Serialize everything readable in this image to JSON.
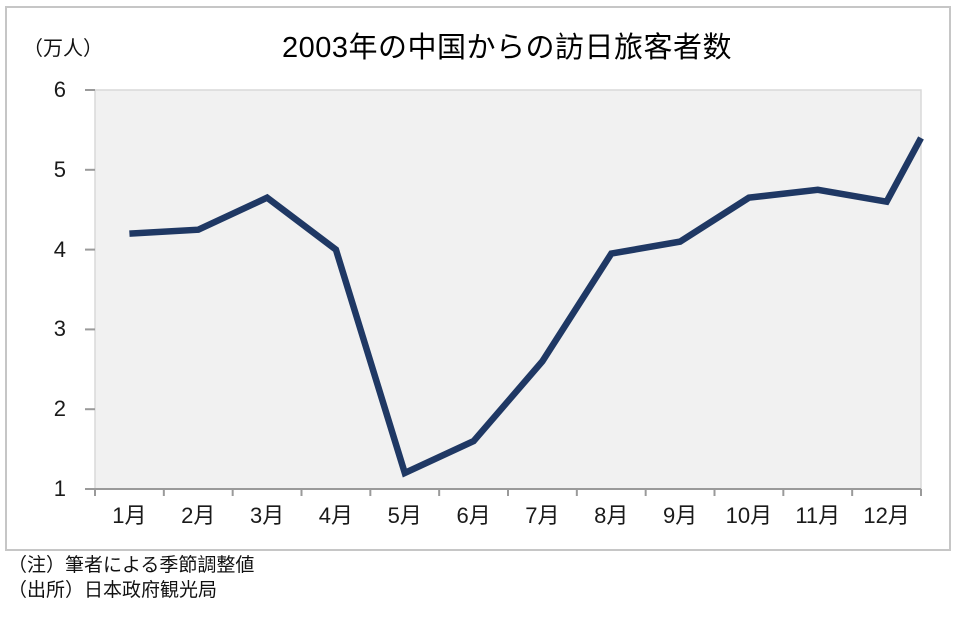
{
  "chart_data": {
    "type": "line",
    "title": "2003年の中国からの訪日旅客者数",
    "y_unit_label": "（万人）",
    "categories": [
      "1月",
      "2月",
      "3月",
      "4月",
      "5月",
      "6月",
      "7月",
      "8月",
      "9月",
      "10月",
      "11月",
      "12月"
    ],
    "values": [
      4.2,
      4.25,
      4.65,
      4.0,
      1.2,
      1.6,
      2.6,
      3.95,
      4.1,
      4.65,
      4.75,
      4.6
    ],
    "unlabeled_end_point_value": 5.4,
    "ylim": [
      1,
      6
    ],
    "y_ticks": [
      1,
      2,
      3,
      4,
      5,
      6
    ],
    "xlabel": "",
    "ylabel": "",
    "grid": false,
    "legend": "none",
    "colors": {
      "line": "#1f3864",
      "plot_fill": "#f1f1f1",
      "plot_border": "#d9d9d9",
      "axis": "#9a9a9a",
      "frame_border": "#c6c6c6"
    }
  },
  "notes": {
    "line1": "（注）筆者による季節調整値",
    "line2": "（出所）日本政府観光局"
  }
}
